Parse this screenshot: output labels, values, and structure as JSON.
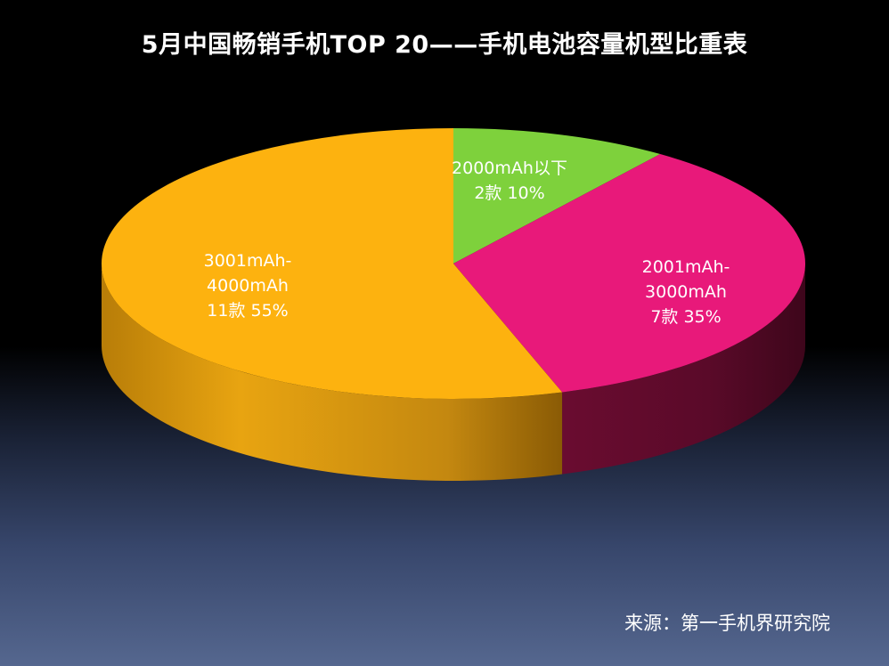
{
  "chart_data": {
    "type": "pie",
    "title": "5月中国畅销手机TOP 20——手机电池容量机型比重表",
    "slices": [
      {
        "label": "2000mAh以下",
        "count": "2款",
        "value": 10,
        "color": "#7ed13c"
      },
      {
        "label": "2001mAh-3000mAh",
        "count": "7款",
        "value": 35,
        "color": "#e8197a"
      },
      {
        "label": "3001mAh-4000mAh",
        "count": "11款",
        "value": 55,
        "color": "#fdb20f"
      }
    ],
    "slice_label_lines": [
      [
        "2000mAh以下",
        "2款 10%"
      ],
      [
        "2001mAh-",
        "3000mAh",
        "7款 35%"
      ],
      [
        "3001mAh-",
        "4000mAh",
        "11款 55%"
      ]
    ]
  },
  "source_note": "来源：第一手机界研究院"
}
